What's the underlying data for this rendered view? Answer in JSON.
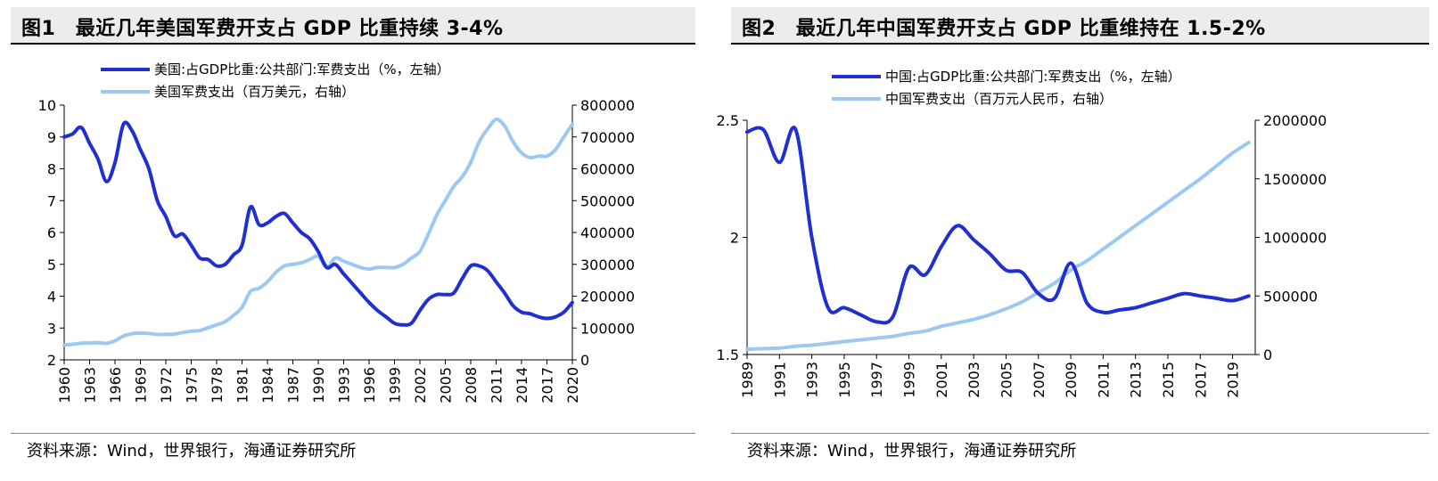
{
  "source_text": "资料来源：Wind，世界银行，海通证券研究所",
  "colors": {
    "dark_series": "#1f2fd1",
    "light_series": "#9cc9f2"
  },
  "chart_data": [
    {
      "type": "line",
      "title": "图1　最近几年美国军费开支占 GDP 比重持续 3-4%",
      "source": "资料来源：Wind，世界银行，海通证券研究所",
      "x_ticks": [
        "1960",
        "1963",
        "1966",
        "1969",
        "1972",
        "1975",
        "1978",
        "1981",
        "1984",
        "1987",
        "1990",
        "1993",
        "1996",
        "1999",
        "2002",
        "2005",
        "2008",
        "2011",
        "2014",
        "2017",
        "2020"
      ],
      "y_left": {
        "ylim": [
          2,
          10
        ],
        "ticks": [
          "2",
          "3",
          "4",
          "5",
          "6",
          "7",
          "8",
          "9",
          "10"
        ]
      },
      "y_right": {
        "ylim": [
          0,
          800000
        ],
        "ticks": [
          "0",
          "100000",
          "200000",
          "300000",
          "400000",
          "500000",
          "600000",
          "700000",
          "800000"
        ]
      },
      "legend_position": "top-left",
      "series": [
        {
          "name": "美国:占GDP比重:公共部门:军费支出（%，左轴）",
          "axis": "left",
          "color": "#1f2fd1",
          "width": 4,
          "x": [
            1960,
            1961,
            1962,
            1963,
            1964,
            1965,
            1966,
            1967,
            1968,
            1969,
            1970,
            1971,
            1972,
            1973,
            1974,
            1975,
            1976,
            1977,
            1978,
            1979,
            1980,
            1981,
            1982,
            1983,
            1984,
            1985,
            1986,
            1987,
            1988,
            1989,
            1990,
            1991,
            1992,
            1993,
            1994,
            1995,
            1996,
            1997,
            1998,
            1999,
            2000,
            2001,
            2002,
            2003,
            2004,
            2005,
            2006,
            2007,
            2008,
            2009,
            2010,
            2011,
            2012,
            2013,
            2014,
            2015,
            2016,
            2017,
            2018,
            2019,
            2020
          ],
          "values": [
            9.0,
            9.1,
            9.3,
            8.8,
            8.3,
            7.6,
            8.2,
            9.4,
            9.2,
            8.6,
            8.0,
            7.0,
            6.5,
            5.9,
            5.95,
            5.6,
            5.2,
            5.15,
            4.95,
            5.0,
            5.3,
            5.6,
            6.8,
            6.25,
            6.3,
            6.5,
            6.6,
            6.3,
            6.0,
            5.8,
            5.4,
            4.9,
            5.0,
            4.7,
            4.4,
            4.1,
            3.8,
            3.55,
            3.35,
            3.15,
            3.1,
            3.15,
            3.55,
            3.9,
            4.05,
            4.05,
            4.1,
            4.55,
            4.95,
            4.95,
            4.8,
            4.45,
            4.1,
            3.7,
            3.5,
            3.45,
            3.35,
            3.3,
            3.35,
            3.5,
            3.8
          ]
        },
        {
          "name": "美国军费支出（百万美元，右轴）",
          "axis": "right",
          "color": "#9cc9f2",
          "width": 4,
          "x": [
            1960,
            1961,
            1962,
            1963,
            1964,
            1965,
            1966,
            1967,
            1968,
            1969,
            1970,
            1971,
            1972,
            1973,
            1974,
            1975,
            1976,
            1977,
            1978,
            1979,
            1980,
            1981,
            1982,
            1983,
            1984,
            1985,
            1986,
            1987,
            1988,
            1989,
            1990,
            1991,
            1992,
            1993,
            1994,
            1995,
            1996,
            1997,
            1998,
            1999,
            2000,
            2001,
            2002,
            2003,
            2004,
            2005,
            2006,
            2007,
            2008,
            2009,
            2010,
            2011,
            2012,
            2013,
            2014,
            2015,
            2016,
            2017,
            2018,
            2019,
            2020
          ],
          "values": [
            47000,
            49000,
            52000,
            53000,
            54000,
            52000,
            60000,
            75000,
            82000,
            84000,
            83000,
            80000,
            80000,
            81000,
            86000,
            90000,
            92000,
            101000,
            110000,
            120000,
            140000,
            165000,
            215000,
            225000,
            245000,
            275000,
            295000,
            300000,
            305000,
            315000,
            325000,
            290000,
            320000,
            310000,
            300000,
            290000,
            285000,
            290000,
            290000,
            290000,
            300000,
            320000,
            340000,
            395000,
            455000,
            500000,
            545000,
            575000,
            620000,
            685000,
            725000,
            755000,
            735000,
            685000,
            650000,
            635000,
            640000,
            640000,
            660000,
            700000,
            740000
          ]
        }
      ]
    },
    {
      "type": "line",
      "title": "图2　最近几年中国军费开支占 GDP 比重维持在 1.5-2%",
      "source": "资料来源：Wind，世界银行，海通证券研究所",
      "x_ticks": [
        "1989",
        "1991",
        "1993",
        "1995",
        "1997",
        "1999",
        "2001",
        "2003",
        "2005",
        "2007",
        "2009",
        "2011",
        "2013",
        "2015",
        "2017",
        "2019"
      ],
      "y_left": {
        "ylim": [
          1.5,
          2.5
        ],
        "ticks": [
          "1.5",
          "2",
          "2.5"
        ]
      },
      "y_right": {
        "ylim": [
          0,
          2000000
        ],
        "ticks": [
          "0",
          "500000",
          "1000000",
          "1500000",
          "2000000"
        ]
      },
      "legend_position": "top-left",
      "series": [
        {
          "name": "中国:占GDP比重:公共部门:军费支出（%，左轴）",
          "axis": "left",
          "color": "#1f2fd1",
          "width": 4,
          "x": [
            1989,
            1990,
            1991,
            1992,
            1993,
            1994,
            1995,
            1996,
            1997,
            1998,
            1999,
            2000,
            2001,
            2002,
            2003,
            2004,
            2005,
            2006,
            2007,
            2008,
            2009,
            2010,
            2011,
            2012,
            2013,
            2014,
            2015,
            2016,
            2017,
            2018,
            2019,
            2020
          ],
          "values": [
            2.45,
            2.46,
            2.32,
            2.46,
            2.0,
            1.7,
            1.7,
            1.67,
            1.64,
            1.66,
            1.87,
            1.84,
            1.96,
            2.05,
            1.99,
            1.93,
            1.86,
            1.85,
            1.76,
            1.74,
            1.89,
            1.72,
            1.68,
            1.69,
            1.7,
            1.72,
            1.74,
            1.76,
            1.75,
            1.74,
            1.73,
            1.75
          ]
        },
        {
          "name": "中国军费支出（百万元人民币，右轴）",
          "axis": "right",
          "color": "#9cc9f2",
          "width": 4,
          "x": [
            1989,
            1990,
            1991,
            1992,
            1993,
            1994,
            1995,
            1996,
            1997,
            1998,
            1999,
            2000,
            2001,
            2002,
            2003,
            2004,
            2005,
            2006,
            2007,
            2008,
            2009,
            2010,
            2011,
            2012,
            2013,
            2014,
            2015,
            2016,
            2017,
            2018,
            2019,
            2020
          ],
          "values": [
            45000,
            50000,
            55000,
            70000,
            80000,
            95000,
            110000,
            125000,
            140000,
            155000,
            180000,
            200000,
            240000,
            270000,
            300000,
            340000,
            390000,
            450000,
            530000,
            610000,
            720000,
            800000,
            900000,
            1000000,
            1100000,
            1200000,
            1300000,
            1400000,
            1500000,
            1610000,
            1720000,
            1810000
          ]
        }
      ]
    }
  ]
}
